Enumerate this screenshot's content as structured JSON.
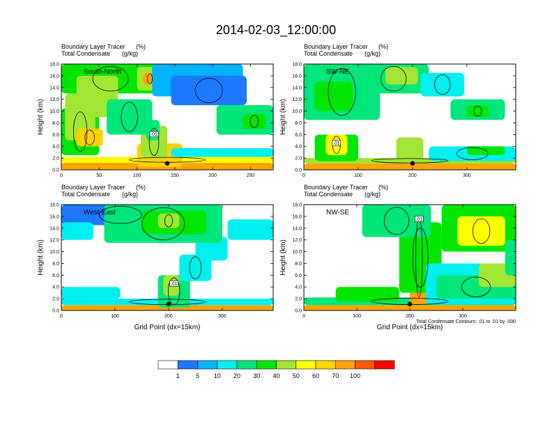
{
  "figure": {
    "title": "2014-02-03_12:00:00",
    "contour_note": "Total Condensate Contours: .01 to .01 by .000",
    "contour_label": ".01"
  },
  "chart_data": [
    {
      "type": "heatmap",
      "panel": "South-North",
      "header_line1": "Boundary Layer Tracer",
      "header_line1_units": "(%)",
      "header_line2": "Total Condensate",
      "header_line2_units": "(g/kg)",
      "ylabel": "Height (km)",
      "xlabel": "",
      "xlim": [
        0,
        280
      ],
      "ylim": [
        0,
        18
      ],
      "xticks": [
        0,
        50,
        100,
        150,
        200,
        250
      ],
      "xticklabels": [
        "0",
        "50",
        "100",
        "150",
        "200",
        "250"
      ],
      "yticks": [
        0,
        2,
        4,
        6,
        8,
        10,
        12,
        14,
        16,
        18
      ],
      "yticklabels": [
        "0.0",
        "2.0",
        "4.0",
        "6.0",
        "8.0",
        "10.0",
        "12.0",
        "14.0",
        "16.0",
        "18.0"
      ],
      "marker": {
        "x": 140,
        "y": 1.1
      },
      "features": [
        {
          "x": 0,
          "y": 0,
          "w": 280,
          "h": 1.2,
          "v": 80
        },
        {
          "x": 0,
          "y": 1.2,
          "w": 280,
          "h": 1.0,
          "v": 52
        },
        {
          "x": 100,
          "y": 0.5,
          "w": 60,
          "h": 4.0,
          "v": 68
        },
        {
          "x": 105,
          "y": 2.0,
          "w": 35,
          "h": 5.5,
          "v": 48
        },
        {
          "x": 112,
          "y": 5.0,
          "w": 18,
          "h": 3.5,
          "v": 28
        },
        {
          "x": 0,
          "y": 2.5,
          "w": 50,
          "h": 8.0,
          "v": 32
        },
        {
          "x": 5,
          "y": 5.0,
          "w": 40,
          "h": 8.0,
          "v": 42
        },
        {
          "x": 0,
          "y": 13.0,
          "w": 130,
          "h": 5.0,
          "v": 30
        },
        {
          "x": 20,
          "y": 9.0,
          "w": 55,
          "h": 7.0,
          "v": 45
        },
        {
          "x": 60,
          "y": 6.0,
          "w": 60,
          "h": 6.0,
          "v": 25
        },
        {
          "x": 100,
          "y": 13.5,
          "w": 35,
          "h": 4.0,
          "v": 48
        },
        {
          "x": 108,
          "y": 14.5,
          "w": 18,
          "h": 2.0,
          "v": 72
        },
        {
          "x": 120,
          "y": 12.5,
          "w": 120,
          "h": 5.5,
          "v": 8
        },
        {
          "x": 145,
          "y": 11.0,
          "w": 100,
          "h": 5.0,
          "v": 4
        },
        {
          "x": 205,
          "y": 6.0,
          "w": 75,
          "h": 5.0,
          "v": 24
        },
        {
          "x": 240,
          "y": 7.0,
          "w": 30,
          "h": 2.5,
          "v": 38
        },
        {
          "x": 145,
          "y": 2.2,
          "w": 135,
          "h": 1.5,
          "v": 14
        },
        {
          "x": 20,
          "y": 4.0,
          "w": 35,
          "h": 3.0,
          "v": 62
        }
      ]
    },
    {
      "type": "heatmap",
      "panel": "SW-NE",
      "header_line1": "Boundary Layer Tracer",
      "header_line1_units": "(%)",
      "header_line2": "Total Condensate",
      "header_line2_units": "(g/kg)",
      "ylabel": "Height (km)",
      "xlabel": "",
      "xlim": [
        0,
        390
      ],
      "ylim": [
        0,
        18
      ],
      "xticks": [
        0,
        100,
        200,
        300
      ],
      "xticklabels": [
        "0",
        "100",
        "200",
        "300"
      ],
      "yticks": [
        0,
        2,
        4,
        6,
        8,
        10,
        12,
        14,
        16,
        18
      ],
      "yticklabels": [
        "0.0",
        "2.0",
        "4.0",
        "6.0",
        "8.0",
        "10.0",
        "12.0",
        "14.0",
        "16.0",
        "18.0"
      ],
      "marker": {
        "x": 200,
        "y": 1.1
      },
      "features": [
        {
          "x": 0,
          "y": 0,
          "w": 390,
          "h": 1.1,
          "v": 80
        },
        {
          "x": 0,
          "y": 1.1,
          "w": 390,
          "h": 0.9,
          "v": 42
        },
        {
          "x": 20,
          "y": 1.5,
          "w": 80,
          "h": 4.5,
          "v": 38
        },
        {
          "x": 40,
          "y": 2.5,
          "w": 40,
          "h": 3.5,
          "v": 55
        },
        {
          "x": 170,
          "y": 1.5,
          "w": 50,
          "h": 4.0,
          "v": 48
        },
        {
          "x": 230,
          "y": 1.5,
          "w": 160,
          "h": 2.5,
          "v": 18
        },
        {
          "x": 300,
          "y": 2.5,
          "w": 70,
          "h": 1.5,
          "v": 30
        },
        {
          "x": 0,
          "y": 8.5,
          "w": 140,
          "h": 9.5,
          "v": 22
        },
        {
          "x": 20,
          "y": 10.0,
          "w": 70,
          "h": 5.0,
          "v": 38
        },
        {
          "x": 100,
          "y": 13.0,
          "w": 130,
          "h": 5.0,
          "v": 28
        },
        {
          "x": 150,
          "y": 14.5,
          "w": 60,
          "h": 3.0,
          "v": 42
        },
        {
          "x": 215,
          "y": 12.5,
          "w": 80,
          "h": 4.0,
          "v": 12
        },
        {
          "x": 270,
          "y": 8.5,
          "w": 100,
          "h": 3.5,
          "v": 22
        },
        {
          "x": 300,
          "y": 9.0,
          "w": 40,
          "h": 2.0,
          "v": 38
        }
      ]
    },
    {
      "type": "heatmap",
      "panel": "West-East",
      "header_line1": "Boundary Layer Tracer",
      "header_line1_units": "(%)",
      "header_line2": "Total Condensate",
      "header_line2_units": "(g/kg)",
      "ylabel": "Height (km)",
      "xlabel": "Grid Point (dx=15km)",
      "xlim": [
        0,
        395
      ],
      "ylim": [
        0,
        18
      ],
      "xticks": [
        0,
        100,
        200,
        300
      ],
      "xticklabels": [
        "0",
        "100",
        "200",
        "300"
      ],
      "yticks": [
        0,
        2,
        4,
        6,
        8,
        10,
        12,
        14,
        16,
        18
      ],
      "yticklabels": [
        "0.0",
        "2.0",
        "4.0",
        "6.0",
        "8.0",
        "10.0",
        "12.0",
        "14.0",
        "16.0",
        "18.0"
      ],
      "marker": {
        "x": 200,
        "y": 1.1
      },
      "features": [
        {
          "x": 0,
          "y": 0,
          "w": 395,
          "h": 0.9,
          "v": 75
        },
        {
          "x": 0,
          "y": 0.9,
          "w": 395,
          "h": 1.1,
          "v": 18
        },
        {
          "x": 0,
          "y": 2.0,
          "w": 110,
          "h": 2.0,
          "v": 12
        },
        {
          "x": 180,
          "y": 0.5,
          "w": 60,
          "h": 5.5,
          "v": 28
        },
        {
          "x": 190,
          "y": 2.5,
          "w": 30,
          "h": 3.5,
          "v": 48
        },
        {
          "x": 220,
          "y": 5.0,
          "w": 60,
          "h": 4.5,
          "v": 18
        },
        {
          "x": 250,
          "y": 8.5,
          "w": 60,
          "h": 4.0,
          "v": 12
        },
        {
          "x": 0,
          "y": 14.5,
          "w": 220,
          "h": 3.5,
          "v": 4
        },
        {
          "x": 0,
          "y": 12.0,
          "w": 60,
          "h": 3.0,
          "v": 12
        },
        {
          "x": 80,
          "y": 11.5,
          "w": 220,
          "h": 6.5,
          "v": 22
        },
        {
          "x": 150,
          "y": 13.0,
          "w": 120,
          "h": 4.0,
          "v": 38
        },
        {
          "x": 180,
          "y": 14.0,
          "w": 40,
          "h": 2.5,
          "v": 48
        },
        {
          "x": 310,
          "y": 12.0,
          "w": 85,
          "h": 3.5,
          "v": 12
        }
      ]
    },
    {
      "type": "heatmap",
      "panel": "NW-SE",
      "header_line1": "Boundary Layer Tracer",
      "header_line1_units": "(%)",
      "header_line2": "Total Condensate",
      "header_line2_units": "(g/kg)",
      "ylabel": "Height (km)",
      "xlabel": "Grid Point (dx=15km)",
      "xlim": [
        0,
        400
      ],
      "ylim": [
        0,
        18
      ],
      "xticks": [
        0,
        100,
        200,
        300
      ],
      "xticklabels": [
        "0",
        "100",
        "200",
        "300"
      ],
      "yticks": [
        0,
        2,
        4,
        6,
        8,
        10,
        12,
        14,
        16,
        18
      ],
      "yticklabels": [
        "0.0",
        "2.0",
        "4.0",
        "6.0",
        "8.0",
        "10.0",
        "12.0",
        "14.0",
        "16.0",
        "18.0"
      ],
      "marker": {
        "x": 200,
        "y": 1.1
      },
      "features": [
        {
          "x": 0,
          "y": 0,
          "w": 400,
          "h": 0.9,
          "v": 75
        },
        {
          "x": 0,
          "y": 0.9,
          "w": 400,
          "h": 1.3,
          "v": 22
        },
        {
          "x": 60,
          "y": 1.5,
          "w": 120,
          "h": 2.5,
          "v": 32
        },
        {
          "x": 200,
          "y": 1.0,
          "w": 35,
          "h": 16.0,
          "v": 72
        },
        {
          "x": 205,
          "y": 2.0,
          "w": 25,
          "h": 13.0,
          "v": 88
        },
        {
          "x": 180,
          "y": 3.0,
          "w": 80,
          "h": 12.0,
          "v": 38
        },
        {
          "x": 230,
          "y": 1.0,
          "w": 170,
          "h": 7.0,
          "v": 18
        },
        {
          "x": 250,
          "y": 2.0,
          "w": 150,
          "h": 4.0,
          "v": 28
        },
        {
          "x": 330,
          "y": 4.0,
          "w": 70,
          "h": 4.0,
          "v": 42
        },
        {
          "x": 110,
          "y": 12.5,
          "w": 130,
          "h": 5.5,
          "v": 22
        },
        {
          "x": 260,
          "y": 10.0,
          "w": 140,
          "h": 8.0,
          "v": 32
        },
        {
          "x": 290,
          "y": 11.0,
          "w": 90,
          "h": 5.0,
          "v": 50
        },
        {
          "x": 380,
          "y": 6.0,
          "w": 20,
          "h": 6.0,
          "v": 28
        }
      ]
    }
  ],
  "colorbar": {
    "colors": [
      "#ffffff",
      "#1e78ff",
      "#00b4ff",
      "#00f0f0",
      "#00e67a",
      "#00e600",
      "#a0e632",
      "#ffff00",
      "#ffd200",
      "#ffa500",
      "#ff5a00",
      "#ff0000"
    ],
    "labels": [
      "1",
      "5",
      "10",
      "20",
      "30",
      "40",
      "50",
      "60",
      "70",
      "100"
    ],
    "levels": [
      1,
      5,
      10,
      20,
      30,
      40,
      50,
      60,
      70,
      100
    ]
  }
}
